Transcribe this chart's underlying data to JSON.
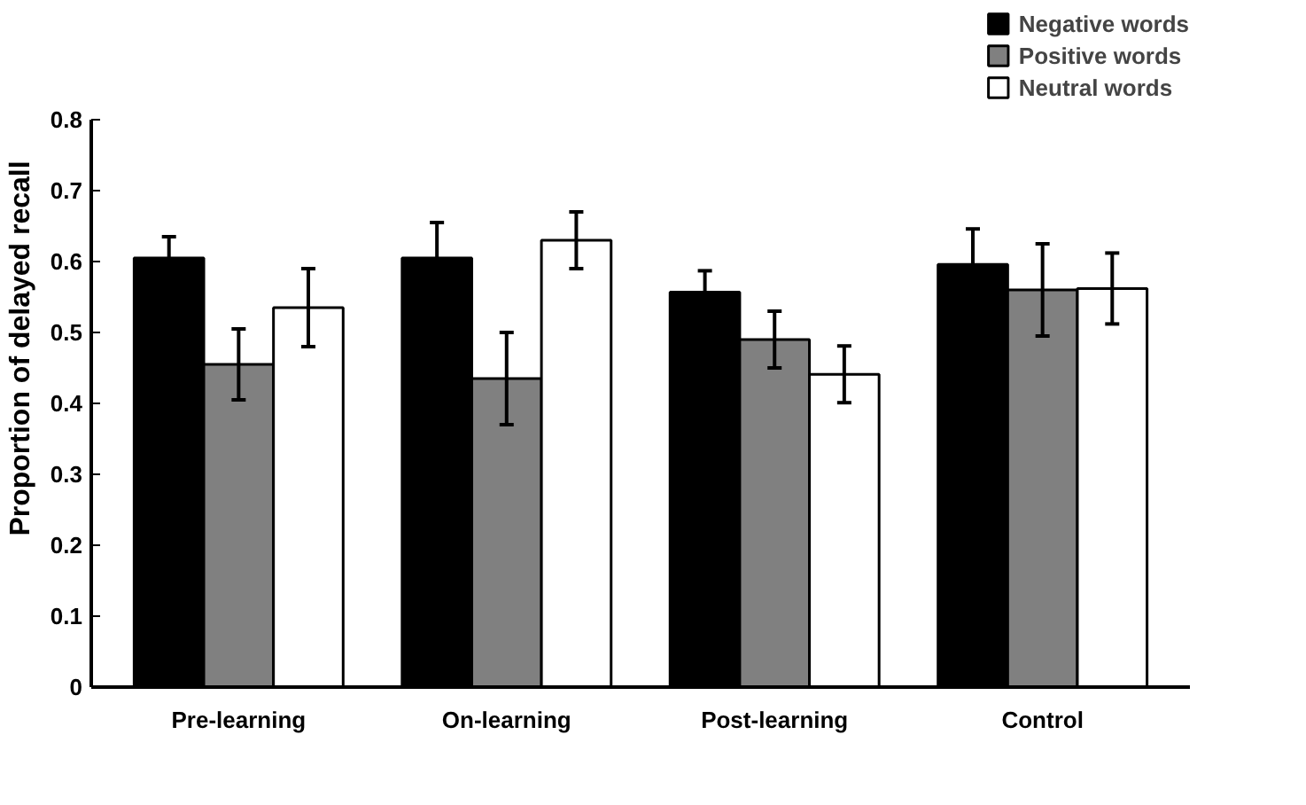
{
  "chart_data": {
    "type": "bar",
    "ylabel": "Proportion of delayed recall",
    "categories": [
      "Pre-learning",
      "On-learning",
      "Post-learning",
      "Control"
    ],
    "series": [
      {
        "name": "Negative words",
        "color": "#000000",
        "values": [
          0.605,
          0.605,
          0.557,
          0.596
        ],
        "errors": [
          0.03,
          0.05,
          0.03,
          0.05
        ]
      },
      {
        "name": "Positive words",
        "color": "#808080",
        "values": [
          0.455,
          0.435,
          0.49,
          0.56
        ],
        "errors": [
          0.05,
          0.065,
          0.04,
          0.065
        ]
      },
      {
        "name": "Neutral words",
        "color": "#ffffff",
        "values": [
          0.535,
          0.63,
          0.441,
          0.562
        ],
        "errors": [
          0.055,
          0.04,
          0.04,
          0.05
        ]
      }
    ],
    "ylim": [
      0,
      0.8
    ],
    "yticks": [
      0,
      0.1,
      0.2,
      0.3,
      0.4,
      0.5,
      0.6,
      0.7,
      0.8
    ],
    "grid": false,
    "legend": "top right"
  }
}
